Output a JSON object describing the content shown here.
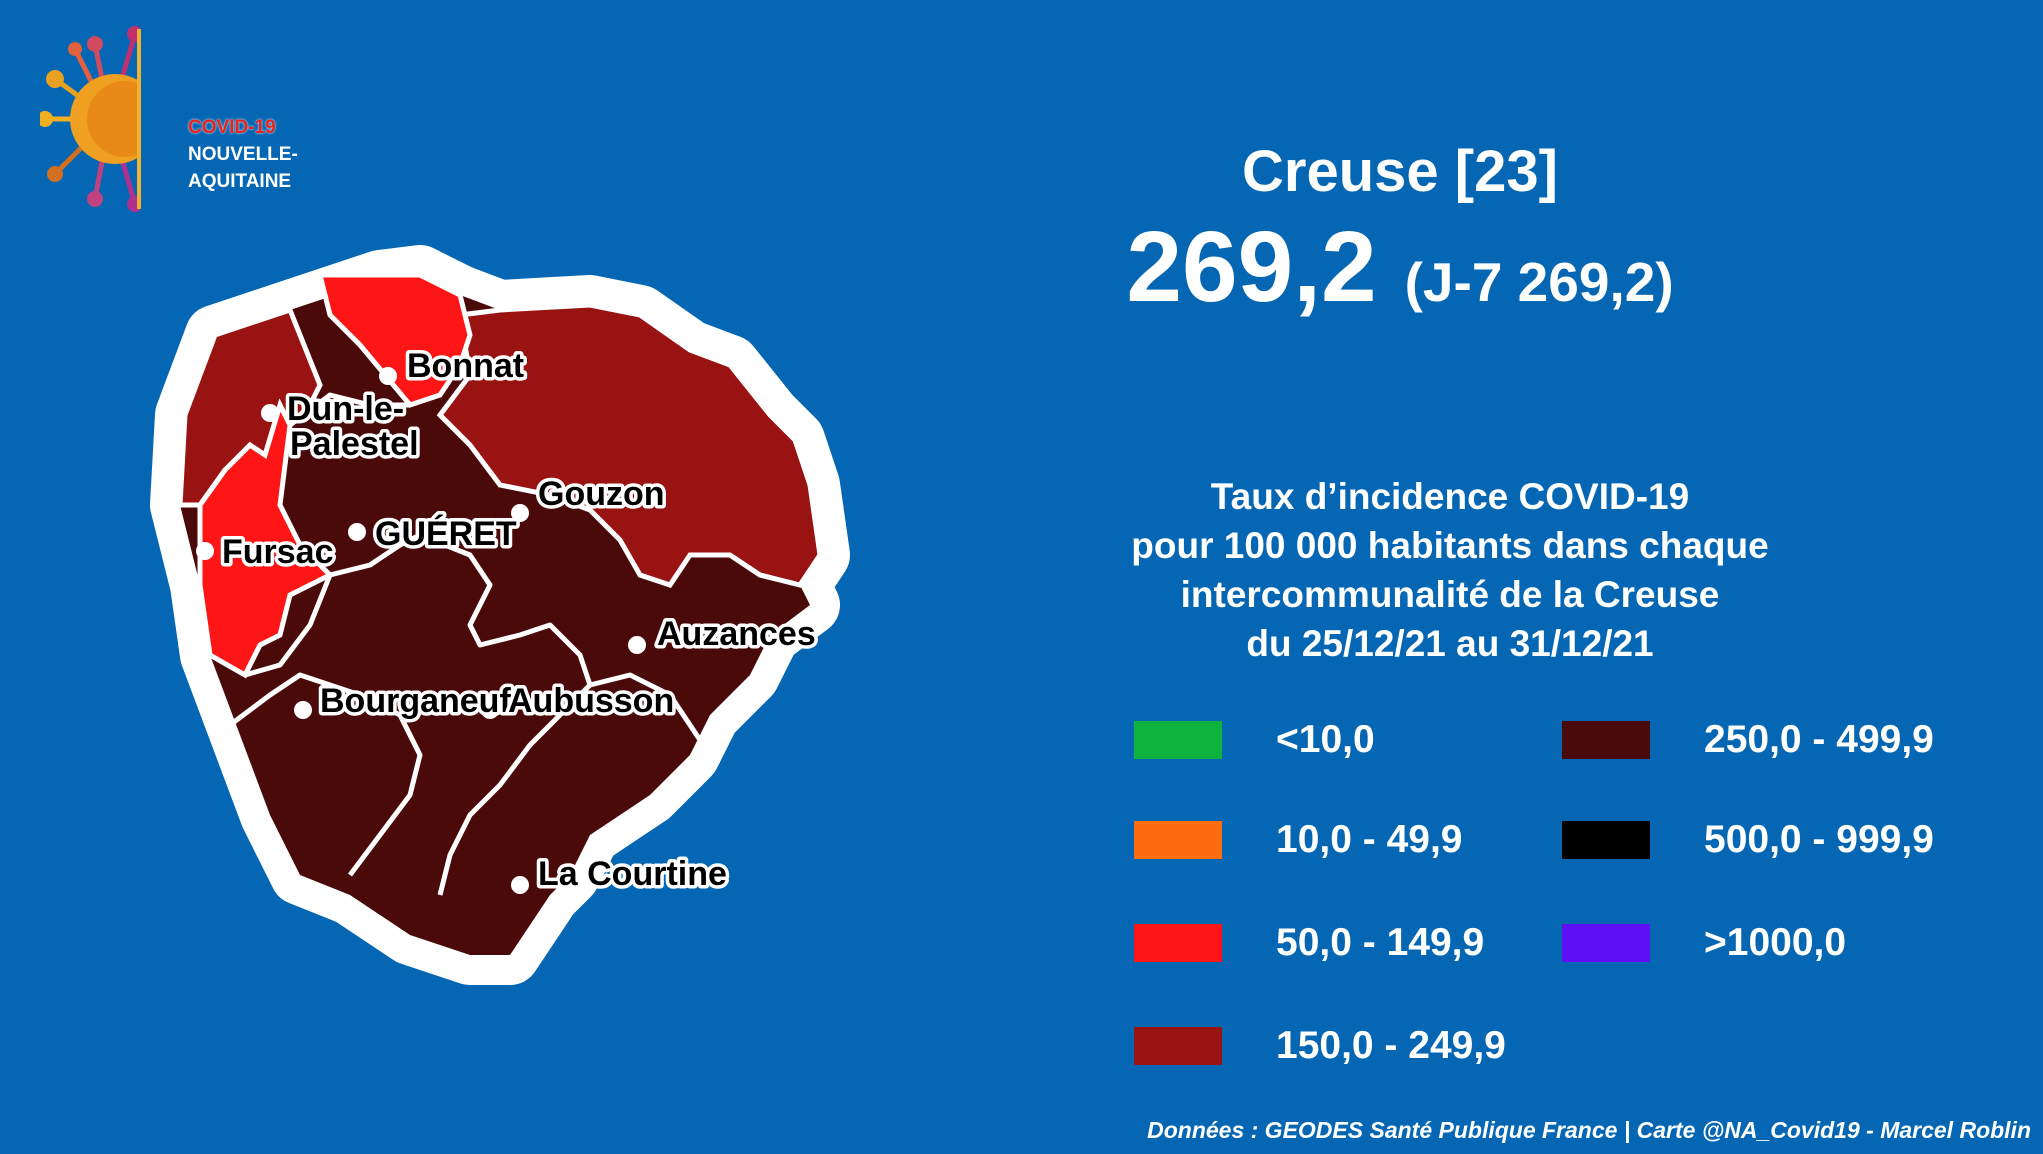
{
  "logo": {
    "line1": "COVID-19",
    "line2": "NOUVELLE-",
    "line3": "AQUITAINE"
  },
  "header": {
    "title": "Creuse [23]",
    "value": "269,2",
    "previous": "(J-7 269,2)"
  },
  "description": {
    "line1": "Taux d’incidence COVID-19",
    "line2": "pour 100 000 habitants dans chaque",
    "line3": "intercommunalité de la Creuse",
    "line4": "du 25/12/21 au 31/12/21"
  },
  "legend": [
    {
      "label": "<10,0",
      "color": "#0db23c"
    },
    {
      "label": "10,0 - 49,9",
      "color": "#ff6b11"
    },
    {
      "label": "50,0 - 149,9",
      "color": "#fe1616"
    },
    {
      "label": "150,0 - 249,9",
      "color": "#991313"
    },
    {
      "label": "250,0 - 499,9",
      "color": "#4a0a0a"
    },
    {
      "label": "500,0 - 999,9",
      "color": "#000000"
    },
    {
      "label": ">1000,0",
      "color": "#5e10f2"
    }
  ],
  "map": {
    "towns": [
      {
        "name": "Bonnat"
      },
      {
        "name": "Dun-le-"
      },
      {
        "name": "Palestel"
      },
      {
        "name": "GUÉRET"
      },
      {
        "name": "Gouzon"
      },
      {
        "name": "Fursac"
      },
      {
        "name": "Auzances"
      },
      {
        "name": "Bourganeuf"
      },
      {
        "name": "Aubusson"
      },
      {
        "name": "La Courtine"
      }
    ]
  },
  "footer": "Données : GEODES Santé Publique France | Carte @NA_Covid19 - Marcel Roblin"
}
